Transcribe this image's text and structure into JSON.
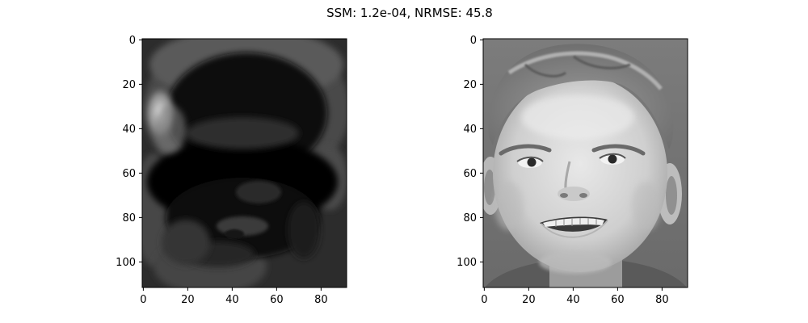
{
  "figure": {
    "title": "SSM: 1.2e-04, NRMSE: 45.8"
  },
  "panels": [
    {
      "id": "left",
      "content": "reconstructed face image (mostly dark, bright left forehead)",
      "x_ticks": [
        "0",
        "20",
        "40",
        "60",
        "80"
      ],
      "y_ticks": [
        "0",
        "20",
        "40",
        "60",
        "80",
        "100"
      ]
    },
    {
      "id": "right",
      "content": "original grayscale face photograph (smiling young man)",
      "x_ticks": [
        "0",
        "20",
        "40",
        "60",
        "80"
      ],
      "y_ticks": [
        "0",
        "20",
        "40",
        "60",
        "80",
        "100"
      ]
    }
  ],
  "image_extent": {
    "width": 92,
    "height": 112
  },
  "colors": {
    "axes_frame": "#000000",
    "background": "#ffffff"
  }
}
